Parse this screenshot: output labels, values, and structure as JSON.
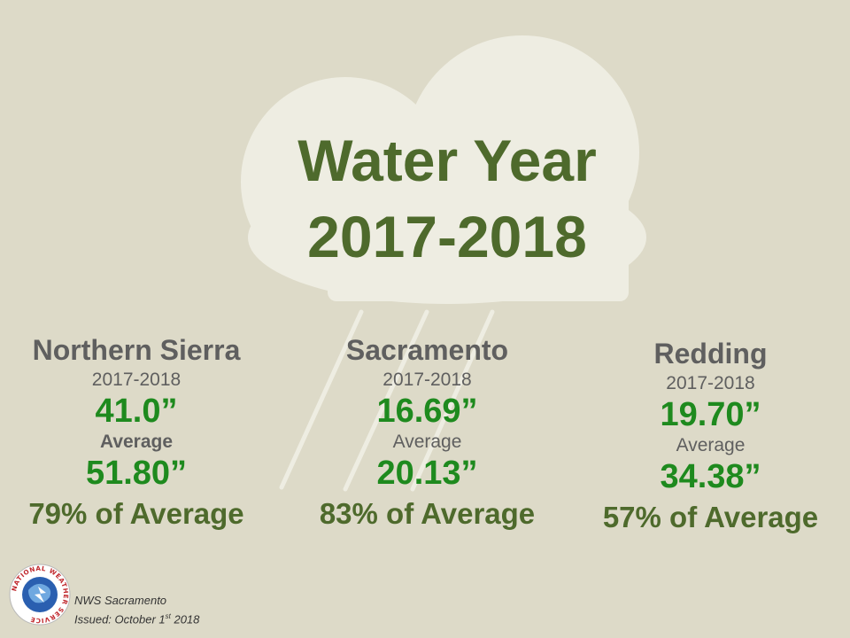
{
  "title": {
    "line1": "Water Year",
    "line2": "2017-2018"
  },
  "stations": [
    {
      "name": "Northern Sierra",
      "year_label": "2017-2018",
      "year_value": "41.0”",
      "avg_label": "Average",
      "avg_value": "51.80”",
      "percent": "79% of Average"
    },
    {
      "name": "Sacramento",
      "year_label": "2017-2018",
      "year_value": "16.69”",
      "avg_label": "Average",
      "avg_value": "20.13”",
      "percent": "83% of Average"
    },
    {
      "name": "Redding",
      "year_label": "2017-2018",
      "year_value": "19.70”",
      "avg_label": "Average",
      "avg_value": "34.38”",
      "percent": "57% of Average"
    }
  ],
  "footer": {
    "office": "NWS Sacramento",
    "issued_prefix": "Issued: October 1",
    "issued_sup": "st",
    "issued_suffix": " 2018"
  },
  "logo": {
    "text": "NATIONAL WEATHER SERVICE"
  },
  "colors": {
    "background": "#dddac8",
    "cloud": "#eeede2",
    "title": "#4e6a2c",
    "value": "#1e8a1e",
    "label": "#5f5f5f"
  }
}
